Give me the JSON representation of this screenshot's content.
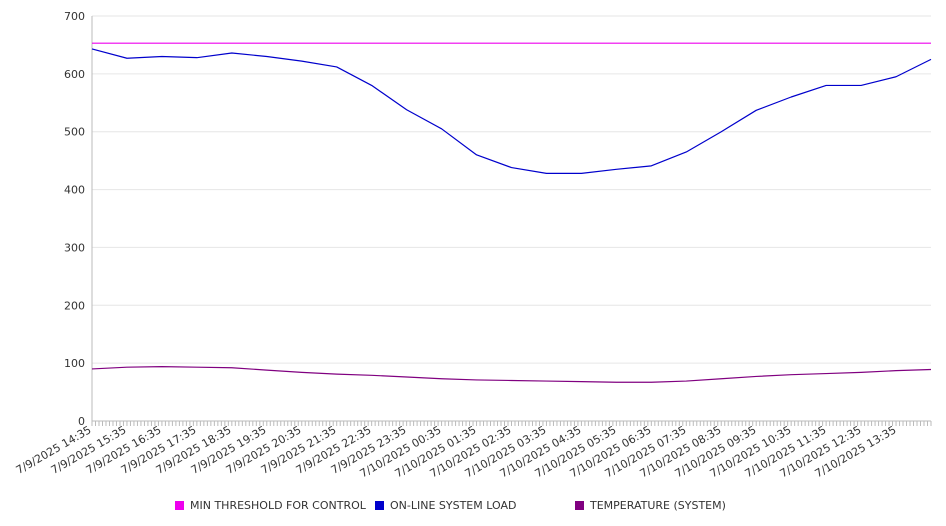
{
  "chart_data": {
    "type": "line",
    "title": "",
    "xlabel": "",
    "ylabel": "",
    "ylim": [
      0,
      700
    ],
    "yticks": [
      0,
      100,
      200,
      300,
      400,
      500,
      600,
      700
    ],
    "x_tick_labels": [
      "7/9/2025 14:35",
      "7/9/2025 15:35",
      "7/9/2025 16:35",
      "7/9/2025 17:35",
      "7/9/2025 18:35",
      "7/9/2025 19:35",
      "7/9/2025 20:35",
      "7/9/2025 21:35",
      "7/9/2025 22:35",
      "7/9/2025 23:35",
      "7/10/2025 00:35",
      "7/10/2025 01:35",
      "7/10/2025 02:35",
      "7/10/2025 03:35",
      "7/10/2025 04:35",
      "7/10/2025 05:35",
      "7/10/2025 06:35",
      "7/10/2025 07:35",
      "7/10/2025 08:35",
      "7/10/2025 09:35",
      "7/10/2025 10:35",
      "7/10/2025 11:35",
      "7/10/2025 12:35",
      "7/10/2025 13:35"
    ],
    "grid": true,
    "legend_position": "bottom",
    "series": [
      {
        "name": "MIN THRESHOLD FOR CONTROL",
        "color": "#ee00ee",
        "values": [
          653,
          653,
          653,
          653,
          653,
          653,
          653,
          653,
          653,
          653,
          653,
          653,
          653,
          653,
          653,
          653,
          653,
          653,
          653,
          653,
          653,
          653,
          653,
          653,
          653
        ]
      },
      {
        "name": "ON-LINE SYSTEM LOAD",
        "color": "#0000cc",
        "values": [
          643,
          627,
          630,
          628,
          636,
          630,
          622,
          612,
          580,
          538,
          505,
          460,
          438,
          428,
          428,
          435,
          441,
          465,
          500,
          537,
          560,
          580,
          580,
          595,
          625
        ]
      },
      {
        "name": "TEMPERATURE (SYSTEM)",
        "color": "#800080",
        "values": [
          90,
          93,
          94,
          93,
          92,
          88,
          84,
          81,
          79,
          76,
          73,
          71,
          70,
          69,
          68,
          67,
          67,
          69,
          73,
          77,
          80,
          82,
          84,
          87,
          89
        ]
      }
    ]
  }
}
